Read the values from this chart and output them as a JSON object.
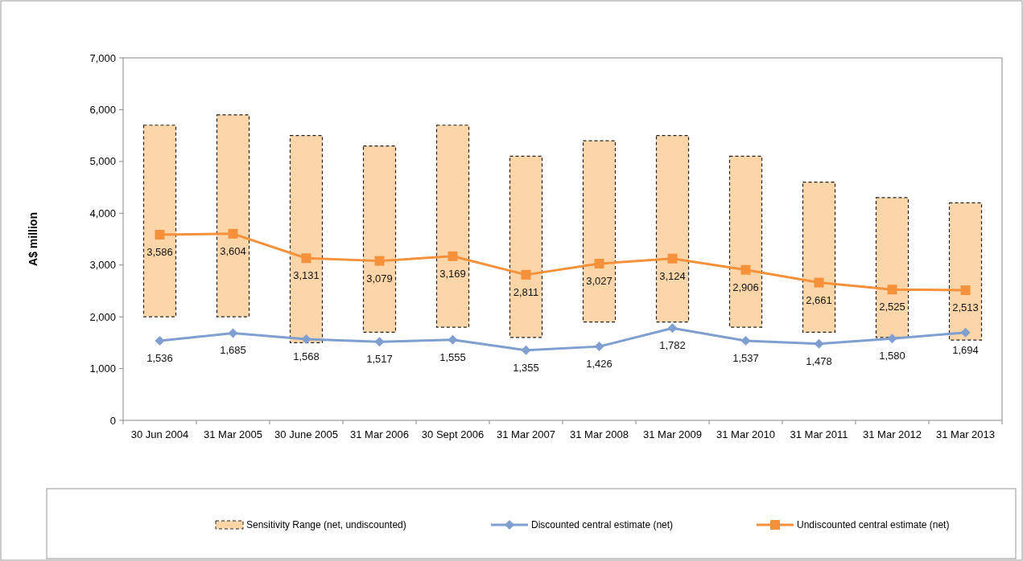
{
  "chart_data": {
    "type": "bar",
    "ylabel": "A$ million",
    "categories": [
      "30 Jun 2004",
      "31 Mar 2005",
      "30 June 2005",
      "31 Mar 2006",
      "30 Sept 2006",
      "31 Mar 2007",
      "31 Mar 2008",
      "31 Mar 2009",
      "31 Mar 2010",
      "31 Mar 2011",
      "31 Mar 2012",
      "31 Mar 2013"
    ],
    "ylim": [
      0,
      7000
    ],
    "yticks": [
      {
        "value": 0,
        "label": "0"
      },
      {
        "value": 1000,
        "label": "1,000"
      },
      {
        "value": 2000,
        "label": "2,000"
      },
      {
        "value": 3000,
        "label": "3,000"
      },
      {
        "value": 4000,
        "label": "4,000"
      },
      {
        "value": 5000,
        "label": "5,000"
      },
      {
        "value": 6000,
        "label": "6,000"
      },
      {
        "value": 7000,
        "label": "7,000"
      }
    ],
    "grid": false,
    "legend": "bottom",
    "series": [
      {
        "name": "Sensitivity Range (net, undiscounted)",
        "color": "#fcd5a8",
        "line_style": "dashed",
        "base": [
          2000,
          2000,
          1500,
          1700,
          1800,
          1600,
          1900,
          1900,
          1800,
          1700,
          1600,
          1550
        ],
        "values": [
          3700,
          3900,
          4000,
          3600,
          3900,
          3500,
          3500,
          3600,
          3300,
          2900,
          2700,
          2650
        ]
      },
      {
        "type": "line",
        "name": "Discounted central estimate (net)",
        "color": "#7f9fd0",
        "marker": "diamond",
        "values": [
          1536,
          1685,
          1568,
          1517,
          1555,
          1355,
          1426,
          1782,
          1537,
          1478,
          1580,
          1694
        ],
        "value_labels": [
          "1,536",
          "1,685",
          "1,568",
          "1,517",
          "1,555",
          "1,355",
          "1,426",
          "1,782",
          "1,537",
          "1,478",
          "1,580",
          "1,694"
        ]
      },
      {
        "type": "line",
        "name": "Undiscounted central estimate (net)",
        "color": "#f5913a",
        "marker": "square",
        "values": [
          3586,
          3604,
          3131,
          3079,
          3169,
          2811,
          3027,
          3124,
          2906,
          2661,
          2525,
          2513
        ],
        "value_labels": [
          "3,586",
          "3,604",
          "3,131",
          "3,079",
          "3,169",
          "2,811",
          "3,027",
          "3,124",
          "2,906",
          "2,661",
          "2,525",
          "2,513"
        ]
      }
    ]
  }
}
